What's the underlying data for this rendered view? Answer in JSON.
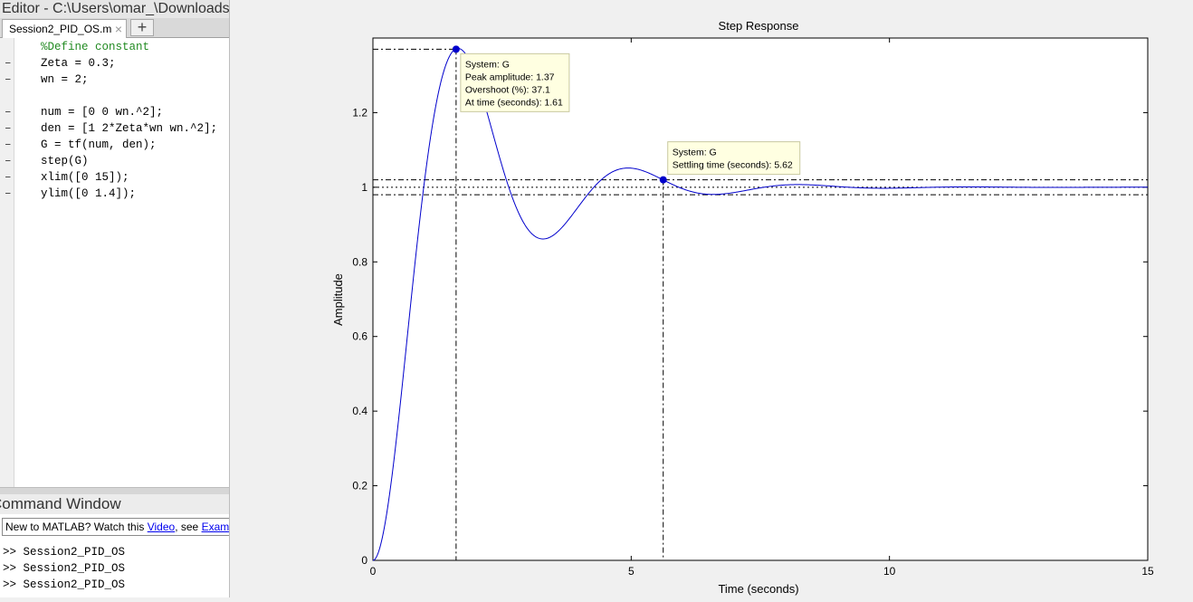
{
  "editor": {
    "title": "Editor - C:\\Users\\omar_\\Downloads",
    "tab_label": "Session2_PID_OS.m",
    "tab_close": "×",
    "tab_add": "+",
    "lines": [
      {
        "dash": "",
        "text": "%Define constant",
        "comment": true
      },
      {
        "dash": "–",
        "text": "Zeta = 0.3;"
      },
      {
        "dash": "–",
        "text": "wn = 2;"
      },
      {
        "dash": "",
        "text": ""
      },
      {
        "dash": "–",
        "text": "num = [0 0 wn.^2];"
      },
      {
        "dash": "–",
        "text": "den = [1 2*Zeta*wn wn.^2];"
      },
      {
        "dash": "–",
        "text": "G = tf(num, den);"
      },
      {
        "dash": "–",
        "text": "step(G)"
      },
      {
        "dash": "–",
        "text": "xlim([0 15]);"
      },
      {
        "dash": "–",
        "text": "ylim([0 1.4]);"
      }
    ]
  },
  "command_window": {
    "title": "Command Window",
    "notice_prefix": "New to MATLAB? Watch this ",
    "notice_link1": "Video",
    "notice_mid": ", see ",
    "notice_link2": "Examples",
    "lines": [
      ">> Session2_PID_OS",
      ">> Session2_PID_OS",
      ">> Session2_PID_OS"
    ]
  },
  "colors": {
    "response_line": "#0000cc",
    "tooltip_bg": "#ffffe1"
  },
  "chart_data": {
    "type": "line",
    "title": "Step Response",
    "xlabel": "Time (seconds)",
    "ylabel": "Amplitude",
    "xlim": [
      0,
      15
    ],
    "ylim": [
      0,
      1.4
    ],
    "xticks": [
      0,
      5,
      10,
      15
    ],
    "yticks": [
      0,
      0.2,
      0.4,
      0.6,
      0.8,
      1,
      1.2
    ],
    "ytick_labels": [
      "0",
      "0.2",
      "0.4",
      "0.6",
      "0.8",
      "1",
      "1.2"
    ],
    "system": {
      "zeta": 0.3,
      "wn": 2
    },
    "settling_band": [
      0.98,
      1.02
    ],
    "peak": {
      "x": 1.61,
      "y": 1.37
    },
    "settling": {
      "x": 5.62,
      "y": 1.02
    },
    "datatips": {
      "peak": [
        "System: G",
        "Peak amplitude: 1.37",
        "Overshoot (%): 37.1",
        "At time (seconds): 1.61"
      ],
      "settling": [
        "System: G",
        "Settling time (seconds): 5.62"
      ]
    }
  }
}
